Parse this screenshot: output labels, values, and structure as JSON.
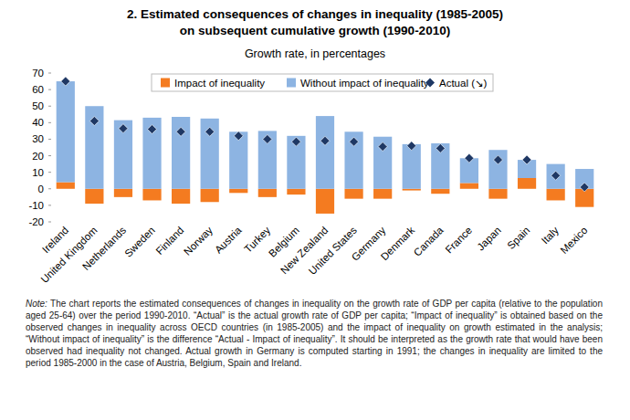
{
  "chart_data": {
    "type": "bar",
    "title": [
      "2. Estimated consequences of changes in inequality (1985-2005)",
      "on subsequent cumulative growth (1990-2010)"
    ],
    "subtitle": "Growth rate, in percentages",
    "categories": [
      "Ireland",
      "United Kingdom",
      "Netherlands",
      "Sweden",
      "Finland",
      "Norway",
      "Austria",
      "Turkey",
      "Belgium",
      "New Zealand",
      "United States",
      "Germany",
      "Denmark",
      "Canada",
      "France",
      "Japan",
      "Spain",
      "Italy",
      "Mexico"
    ],
    "series": [
      {
        "name": "Impact of inequality",
        "color": "#f47b20",
        "type": "bar",
        "values": [
          4,
          -9,
          -5,
          -7,
          -9,
          -8,
          -2.5,
          -5,
          -3.5,
          -15,
          -6,
          -6,
          -1,
          -3,
          3.5,
          -6,
          6.5,
          -7,
          -11
        ]
      },
      {
        "name": "Without impact of inequality",
        "color": "#8db4e2",
        "type": "bar",
        "values": [
          61,
          50,
          41.5,
          43,
          43.5,
          42.5,
          34.5,
          35,
          32,
          44,
          34.5,
          31.5,
          27,
          27.5,
          15,
          23.5,
          11,
          15,
          12
        ]
      },
      {
        "name": "Actual (↘)",
        "color": "#1f3864",
        "type": "scatter",
        "marker": "diamond",
        "values": [
          65,
          41,
          36.5,
          36,
          34.5,
          34.5,
          32,
          30,
          28.5,
          29,
          28.5,
          25.5,
          26,
          24.5,
          18.5,
          17.5,
          17.5,
          8,
          1
        ]
      }
    ],
    "stacked": true,
    "ylim": [
      -20,
      70
    ],
    "yticks": [
      -20,
      -10,
      0,
      10,
      20,
      30,
      40,
      50,
      60,
      70
    ],
    "grid": false,
    "legend": "top",
    "note": {
      "label": "Note:",
      "text": "The chart reports the estimated consequences of changes in inequality on the growth rate of GDP per capita (relative to the population aged 25-64) over the period 1990-2010. “Actual” is the actual growth rate of GDP per capita; “Impact of inequality” is obtained based on the observed changes in inequality across OECD countries (in 1985-2005) and the impact of inequality on growth estimated in the analysis; “Without impact of inequality” is the difference “Actual - Impact of inequality”. It should be interpreted as the growth rate that would have been observed had inequality not changed. Actual growth in Germany is computed starting in 1991; the changes in inequality are limited to the period 1985-2000 in the case of Austria, Belgium, Spain and Ireland."
    }
  }
}
